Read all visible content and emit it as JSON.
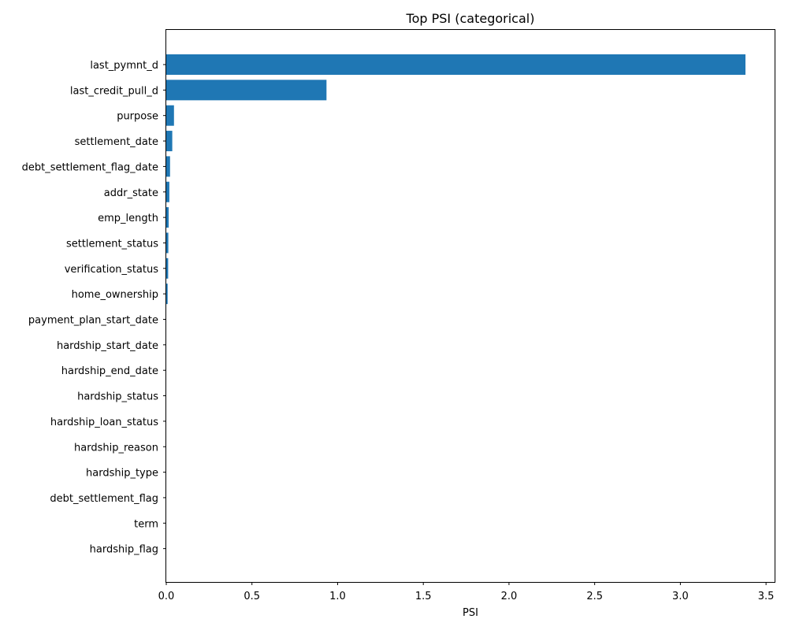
{
  "chart_data": {
    "type": "bar",
    "orientation": "horizontal",
    "title": "Top PSI (categorical)",
    "xlabel": "PSI",
    "ylabel": "",
    "xlim": [
      0,
      3.55
    ],
    "xticks": [
      "0.0",
      "0.5",
      "1.0",
      "1.5",
      "2.0",
      "2.5",
      "3.0",
      "3.5"
    ],
    "grid": false,
    "bar_color": "#1f77b4",
    "categories": [
      "last_pymnt_d",
      "last_credit_pull_d",
      "purpose",
      "settlement_date",
      "debt_settlement_flag_date",
      "addr_state",
      "emp_length",
      "settlement_status",
      "verification_status",
      "home_ownership",
      "payment_plan_start_date",
      "hardship_start_date",
      "hardship_end_date",
      "hardship_status",
      "hardship_loan_status",
      "hardship_reason",
      "hardship_type",
      "debt_settlement_flag",
      "term",
      "hardship_flag"
    ],
    "values": [
      3.38,
      0.935,
      0.045,
      0.035,
      0.022,
      0.018,
      0.014,
      0.012,
      0.011,
      0.008,
      0.0,
      0.0,
      0.0,
      0.0,
      0.0,
      0.0,
      0.0,
      0.0,
      0.0,
      0.0
    ]
  }
}
